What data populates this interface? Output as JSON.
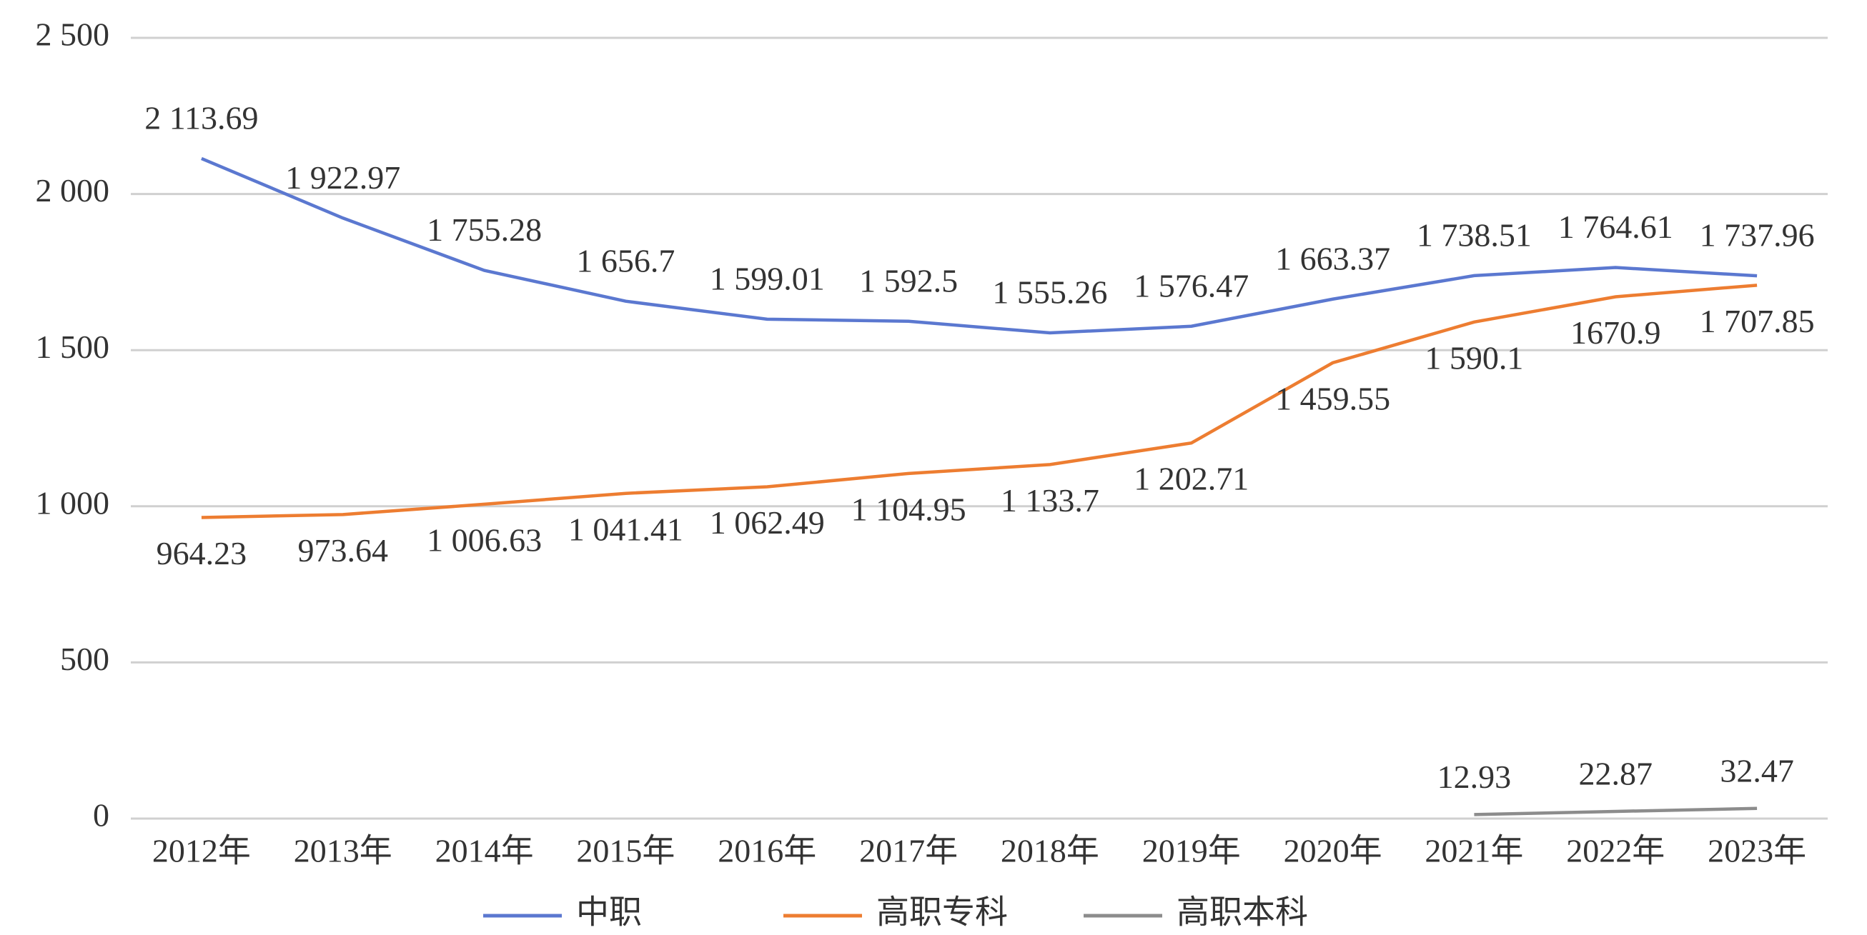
{
  "chart_data": {
    "type": "line",
    "categories": [
      "2012年",
      "2013年",
      "2014年",
      "2015年",
      "2016年",
      "2017年",
      "2018年",
      "2019年",
      "2020年",
      "2021年",
      "2022年",
      "2023年"
    ],
    "series": [
      {
        "name": "中职",
        "color": "#5b78d0",
        "values": [
          2113.69,
          1922.97,
          1755.28,
          1656.7,
          1599.01,
          1592.5,
          1555.26,
          1576.47,
          1663.37,
          1738.51,
          1764.61,
          1737.96
        ],
        "value_labels": [
          "2 113.69",
          "1 922.97",
          "1 755.28",
          "1 656.7",
          "1 599.01",
          "1 592.5",
          "1 555.26",
          "1 576.47",
          "1 663.37",
          "1 738.51",
          "1 764.61",
          "1 737.96"
        ]
      },
      {
        "name": "高职专科",
        "color": "#ed7d31",
        "values": [
          964.23,
          973.64,
          1006.63,
          1041.41,
          1062.49,
          1104.95,
          1133.7,
          1202.71,
          1459.55,
          1590.1,
          1670.9,
          1707.85
        ],
        "value_labels": [
          "964.23",
          "973.64",
          "1 006.63",
          "1 041.41",
          "1 062.49",
          "1 104.95",
          "1 133.7",
          "1 202.71",
          "1 459.55",
          "1 590.1",
          "1670.9",
          "1 707.85"
        ]
      },
      {
        "name": "高职本科",
        "color": "#8c8c8c",
        "values": [
          null,
          null,
          null,
          null,
          null,
          null,
          null,
          null,
          null,
          12.93,
          22.87,
          32.47
        ],
        "value_labels": [
          null,
          null,
          null,
          null,
          null,
          null,
          null,
          null,
          null,
          "12.93",
          "22.87",
          "32.47"
        ]
      }
    ],
    "ylim": [
      0,
      2500
    ],
    "yticks": [
      0,
      500,
      {
        "value": 1000,
        "label": "1 000"
      },
      {
        "value": 1500,
        "label": "1 500"
      },
      {
        "value": 2000,
        "label": "2 000"
      },
      {
        "value": 2500,
        "label": "2 500"
      }
    ],
    "grid": true,
    "legend": "bottom"
  }
}
